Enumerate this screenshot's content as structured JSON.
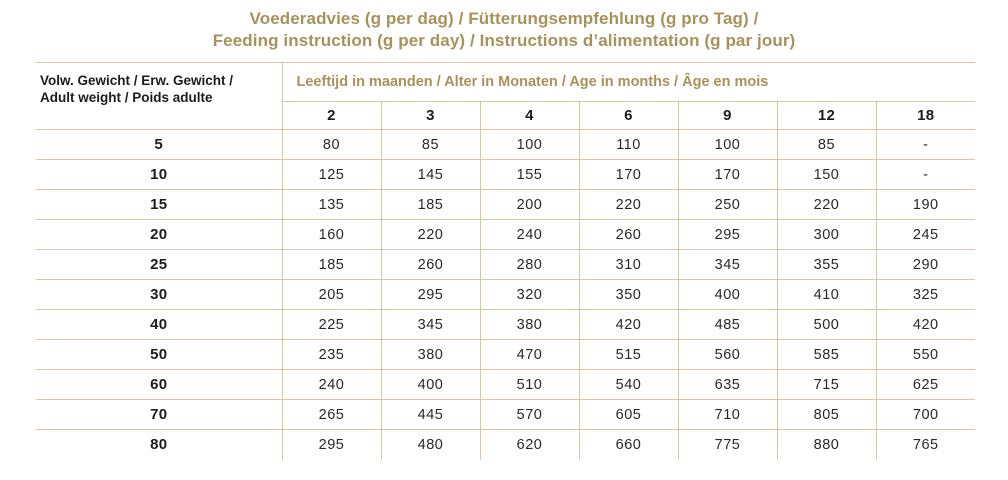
{
  "title": {
    "line1": "Voederadvies (g per dag) / Fütterungsempfehlung (g pro Tag) /",
    "line2": "Feeding instruction (g per day) / Instructions d’alimentation (g par jour)"
  },
  "colors": {
    "gold_text": "#a8915a",
    "table_line": "#d6c79e",
    "heading_text": "#1d1c1a",
    "data_text": "#2a2925",
    "background": "#ffffff"
  },
  "feeding_table": {
    "weight_header": {
      "line1": "Volw. Gewicht / Erw. Gewicht /",
      "line2": "Adult weight / Poids adulte"
    },
    "age_header": "Leeftijd in maanden / Alter in Monaten / Age in months / Âge en mois",
    "age_columns": [
      "2",
      "3",
      "4",
      "6",
      "9",
      "12",
      "18"
    ],
    "rows": [
      {
        "weight": "5",
        "values": [
          "80",
          "85",
          "100",
          "110",
          "100",
          "85",
          "-"
        ]
      },
      {
        "weight": "10",
        "values": [
          "125",
          "145",
          "155",
          "170",
          "170",
          "150",
          "-"
        ]
      },
      {
        "weight": "15",
        "values": [
          "135",
          "185",
          "200",
          "220",
          "250",
          "220",
          "190"
        ]
      },
      {
        "weight": "20",
        "values": [
          "160",
          "220",
          "240",
          "260",
          "295",
          "300",
          "245"
        ]
      },
      {
        "weight": "25",
        "values": [
          "185",
          "260",
          "280",
          "310",
          "345",
          "355",
          "290"
        ]
      },
      {
        "weight": "30",
        "values": [
          "205",
          "295",
          "320",
          "350",
          "400",
          "410",
          "325"
        ]
      },
      {
        "weight": "40",
        "values": [
          "225",
          "345",
          "380",
          "420",
          "485",
          "500",
          "420"
        ]
      },
      {
        "weight": "50",
        "values": [
          "235",
          "380",
          "470",
          "515",
          "560",
          "585",
          "550"
        ]
      },
      {
        "weight": "60",
        "values": [
          "240",
          "400",
          "510",
          "540",
          "635",
          "715",
          "625"
        ]
      },
      {
        "weight": "70",
        "values": [
          "265",
          "445",
          "570",
          "605",
          "710",
          "805",
          "700"
        ]
      },
      {
        "weight": "80",
        "values": [
          "295",
          "480",
          "620",
          "660",
          "775",
          "880",
          "765"
        ]
      }
    ]
  }
}
